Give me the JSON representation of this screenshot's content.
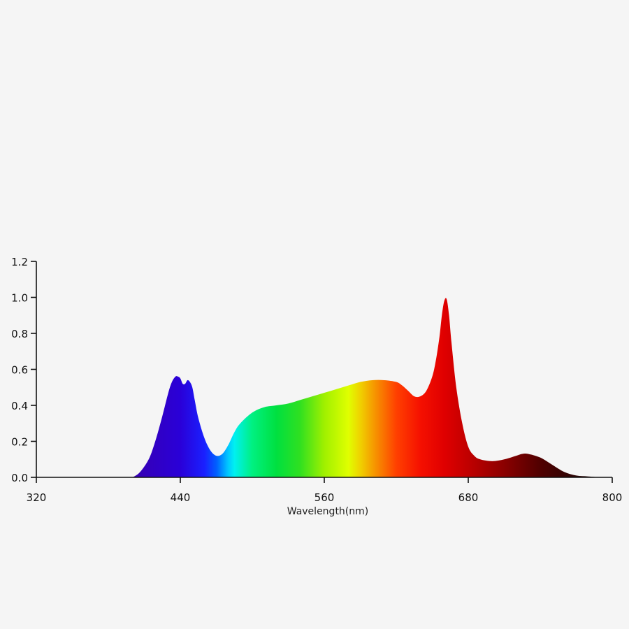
{
  "chart_data": {
    "type": "area",
    "title": "",
    "xlabel": "Wavelength(nm)",
    "ylabel": "",
    "xlim": [
      320,
      800
    ],
    "ylim": [
      0,
      1.2
    ],
    "x_ticks": [
      "320",
      "440",
      "560",
      "680",
      "800"
    ],
    "y_ticks": [
      "0.0",
      "0.2",
      "0.4",
      "0.6",
      "0.8",
      "1.0",
      "1.2"
    ],
    "grid": false,
    "legend": "none",
    "fill": "visible-spectrum gradient (violet to dark red)",
    "series": [
      {
        "x": [
          400,
          405,
          410,
          415,
          420,
          425,
          430,
          433,
          436,
          438,
          440,
          442,
          444,
          446,
          448,
          450,
          452,
          455,
          460,
          465,
          470,
          475,
          480,
          485,
          490,
          500,
          510,
          520,
          530,
          540,
          550,
          560,
          570,
          580,
          590,
          600,
          610,
          620,
          625,
          630,
          635,
          640,
          645,
          650,
          653,
          656,
          658,
          660,
          662,
          664,
          666,
          670,
          675,
          680,
          685,
          690,
          700,
          710,
          720,
          725,
          730,
          740,
          750,
          760,
          770,
          780,
          790
        ],
        "y": [
          0.0,
          0.02,
          0.06,
          0.12,
          0.22,
          0.34,
          0.47,
          0.53,
          0.56,
          0.56,
          0.55,
          0.52,
          0.52,
          0.54,
          0.53,
          0.5,
          0.43,
          0.33,
          0.22,
          0.15,
          0.12,
          0.13,
          0.18,
          0.25,
          0.3,
          0.36,
          0.39,
          0.4,
          0.41,
          0.43,
          0.45,
          0.47,
          0.49,
          0.51,
          0.53,
          0.54,
          0.54,
          0.53,
          0.51,
          0.48,
          0.45,
          0.45,
          0.48,
          0.56,
          0.65,
          0.78,
          0.9,
          0.98,
          0.99,
          0.9,
          0.75,
          0.5,
          0.3,
          0.17,
          0.12,
          0.1,
          0.09,
          0.1,
          0.12,
          0.13,
          0.13,
          0.11,
          0.07,
          0.03,
          0.01,
          0.005,
          0.0
        ]
      }
    ]
  },
  "colors": {
    "background": "#f5f5f5",
    "axis": "#111111"
  }
}
